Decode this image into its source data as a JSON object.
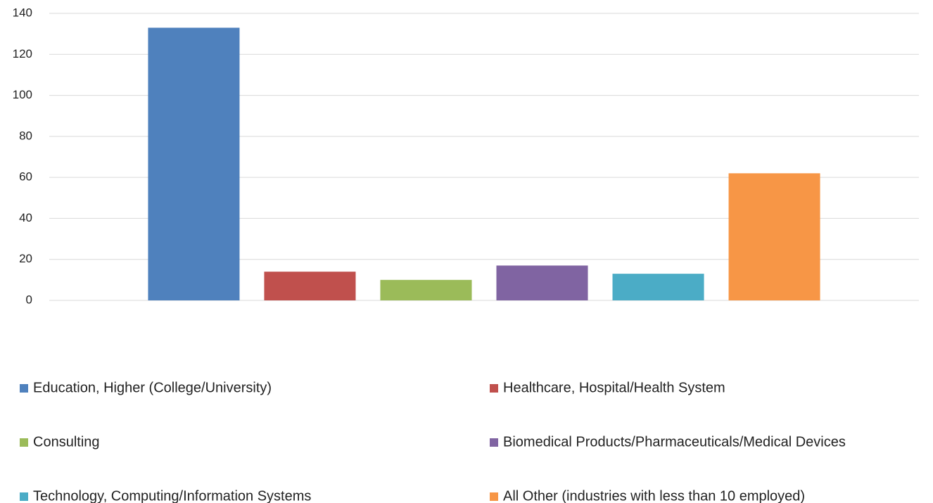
{
  "chart_data": {
    "type": "bar",
    "categories": [
      null
    ],
    "series": [
      {
        "name": "Education, Higher (College/University)",
        "color": "#4f81bd",
        "values": [
          133
        ]
      },
      {
        "name": "Healthcare, Hospital/Health System",
        "color": "#c0504d",
        "values": [
          14
        ]
      },
      {
        "name": "Consulting",
        "color": "#9bbb59",
        "values": [
          10
        ]
      },
      {
        "name": "Biomedical Products/Pharmaceuticals/Medical Devices",
        "color": "#8064a2",
        "values": [
          17
        ]
      },
      {
        "name": "Technology, Computing/Information Systems",
        "color": "#4bacc6",
        "values": [
          13
        ]
      },
      {
        "name": "All Other (industries with less than 10 employed)",
        "color": "#f79646",
        "values": [
          62
        ]
      }
    ],
    "ylim": [
      0,
      140
    ],
    "yticks": [
      0,
      20,
      40,
      60,
      80,
      100,
      120,
      140
    ],
    "grid": true,
    "legend": "bottom"
  }
}
